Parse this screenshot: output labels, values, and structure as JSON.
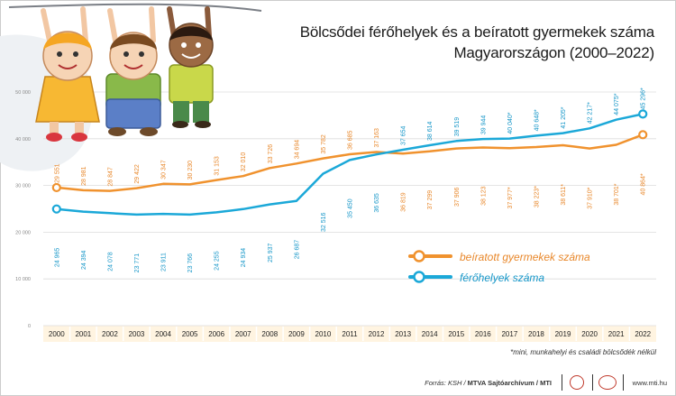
{
  "title_line1": "Bölcsődei férőhelyek és a beíratott gyermekek száma",
  "title_line2": "Magyarországon (2000–2022)",
  "note": "*mini, munkahelyi és családi bölcsődék nélkül",
  "source_prefix": "Forrás: KSH / ",
  "source_bold": "MTVA Sajtóarchívum / MTI",
  "site": "www.mti.hu",
  "colors": {
    "enrolled": "#f0922e",
    "capacity": "#1ba8d8",
    "enrolled_label": "#e8872a",
    "capacity_label": "#1596c8",
    "axis_bg": "#fff4e1",
    "grid": "#dcdcdc"
  },
  "chart_data": {
    "type": "line",
    "x": [
      "2000",
      "2001",
      "2002",
      "2003",
      "2004",
      "2005",
      "2006",
      "2007",
      "2008",
      "2009",
      "2010",
      "2011",
      "2012",
      "2013",
      "2014",
      "2015",
      "2016",
      "2017",
      "2018",
      "2019",
      "2020",
      "2021",
      "2022"
    ],
    "ylim": [
      0,
      50000
    ],
    "yticks": [
      "0",
      "10 000",
      "20 000",
      "30 000",
      "40 000",
      "50 000"
    ],
    "series": [
      {
        "name": "beíratott gyermekek száma",
        "values": [
          29551,
          28981,
          28847,
          29422,
          30347,
          30230,
          31153,
          32010,
          33726,
          34694,
          35782,
          36685,
          37163,
          36819,
          37299,
          37906,
          38123,
          37977,
          38223,
          38611,
          37910,
          38701,
          40864
        ],
        "labels": [
          "29 551",
          "28 981",
          "28 847",
          "29 422",
          "30 347",
          "30 230",
          "31 153",
          "32 010",
          "33 726",
          "34 694",
          "35 782",
          "36 685",
          "37 163",
          "36 819",
          "37 299",
          "37 906",
          "38 123",
          "37 977*",
          "38 223*",
          "38 611*",
          "37 910*",
          "38 701*",
          "40 864*"
        ]
      },
      {
        "name": "férőhelyek száma",
        "values": [
          24965,
          24394,
          24078,
          23771,
          23911,
          23766,
          24255,
          24934,
          25937,
          26687,
          32516,
          35450,
          36635,
          37654,
          38614,
          39519,
          39944,
          40040,
          40648,
          41205,
          42217,
          44075,
          45296
        ],
        "labels": [
          "24 965",
          "24 394",
          "24 078",
          "23 771",
          "23 911",
          "23 766",
          "24 255",
          "24 934",
          "25 937",
          "26 687",
          "32 516",
          "35 450",
          "36 635",
          "37 654",
          "38 614",
          "39 519",
          "39 944",
          "40 040*",
          "40 648*",
          "41 205*",
          "42 217*",
          "44 075*",
          "45 296*"
        ]
      }
    ]
  }
}
